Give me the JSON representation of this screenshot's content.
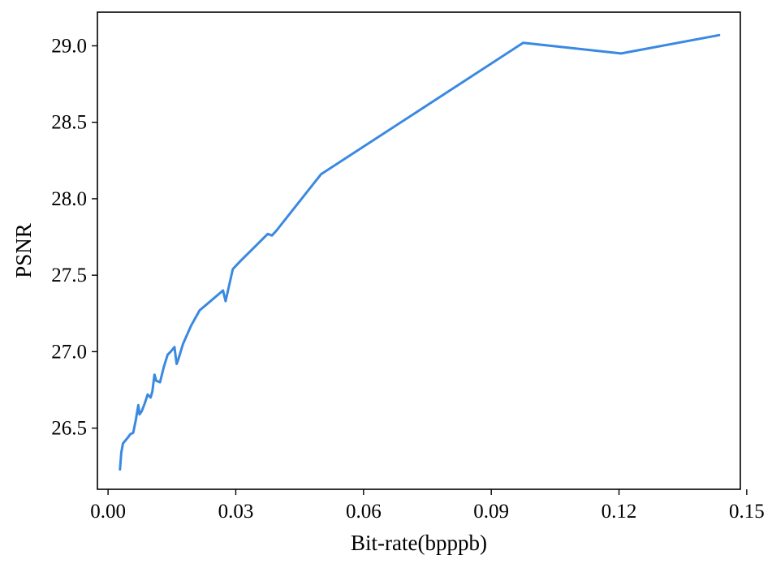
{
  "chart_data": {
    "type": "line",
    "title": "",
    "xlabel": "Bit-rate(bpppb)",
    "ylabel": "PSNR",
    "xlim": [
      -0.0025,
      0.1485
    ],
    "ylim": [
      26.1,
      29.22
    ],
    "xticks": [
      0.0,
      0.03,
      0.06,
      0.09,
      0.12,
      0.15
    ],
    "xtick_labels": [
      "0.00",
      "0.03",
      "0.06",
      "0.09",
      "0.12",
      "0.15"
    ],
    "yticks": [
      26.5,
      27.0,
      27.5,
      28.0,
      28.5,
      29.0
    ],
    "ytick_labels": [
      "26.5",
      "27.0",
      "27.5",
      "28.0",
      "28.5",
      "29.0"
    ],
    "grid": false,
    "legend": "none",
    "series": [
      {
        "color": "#3a89e0",
        "x": [
          0.0028,
          0.0031,
          0.0035,
          0.0041,
          0.0047,
          0.0052,
          0.0059,
          0.0065,
          0.0071,
          0.0074,
          0.0079,
          0.0086,
          0.0093,
          0.01,
          0.0104,
          0.0109,
          0.0113,
          0.0122,
          0.0131,
          0.014,
          0.0147,
          0.0156,
          0.0161,
          0.0165,
          0.0176,
          0.0195,
          0.0215,
          0.027,
          0.0276,
          0.028,
          0.0293,
          0.031,
          0.0375,
          0.0385,
          0.0395,
          0.05,
          0.0975,
          0.1205,
          0.1435
        ],
        "y": [
          26.23,
          26.34,
          26.4,
          26.42,
          26.44,
          26.46,
          26.47,
          26.55,
          26.65,
          26.59,
          26.61,
          26.66,
          26.72,
          26.7,
          26.74,
          26.85,
          26.81,
          26.8,
          26.9,
          26.98,
          27.0,
          27.03,
          26.92,
          26.95,
          27.05,
          27.17,
          27.27,
          27.4,
          27.33,
          27.38,
          27.54,
          27.59,
          27.77,
          27.76,
          27.79,
          28.16,
          29.02,
          28.95,
          29.07
        ]
      }
    ]
  }
}
